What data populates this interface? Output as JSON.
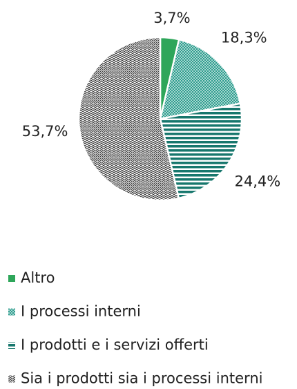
{
  "chart_data": {
    "type": "pie",
    "categories": [
      "Altro",
      "I processi interni",
      "I prodotti e i servizi offerti",
      "Sia i prodotti sia i processi interni"
    ],
    "values": [
      3.7,
      18.3,
      24.4,
      53.7
    ],
    "value_labels": [
      "3,7%",
      "18,3%",
      "24,4%",
      "53,7%"
    ],
    "colors": [
      "#2ea65a",
      "#2f9e8f",
      "#17776d",
      "#3a3a3a"
    ],
    "legend": "bottom"
  }
}
